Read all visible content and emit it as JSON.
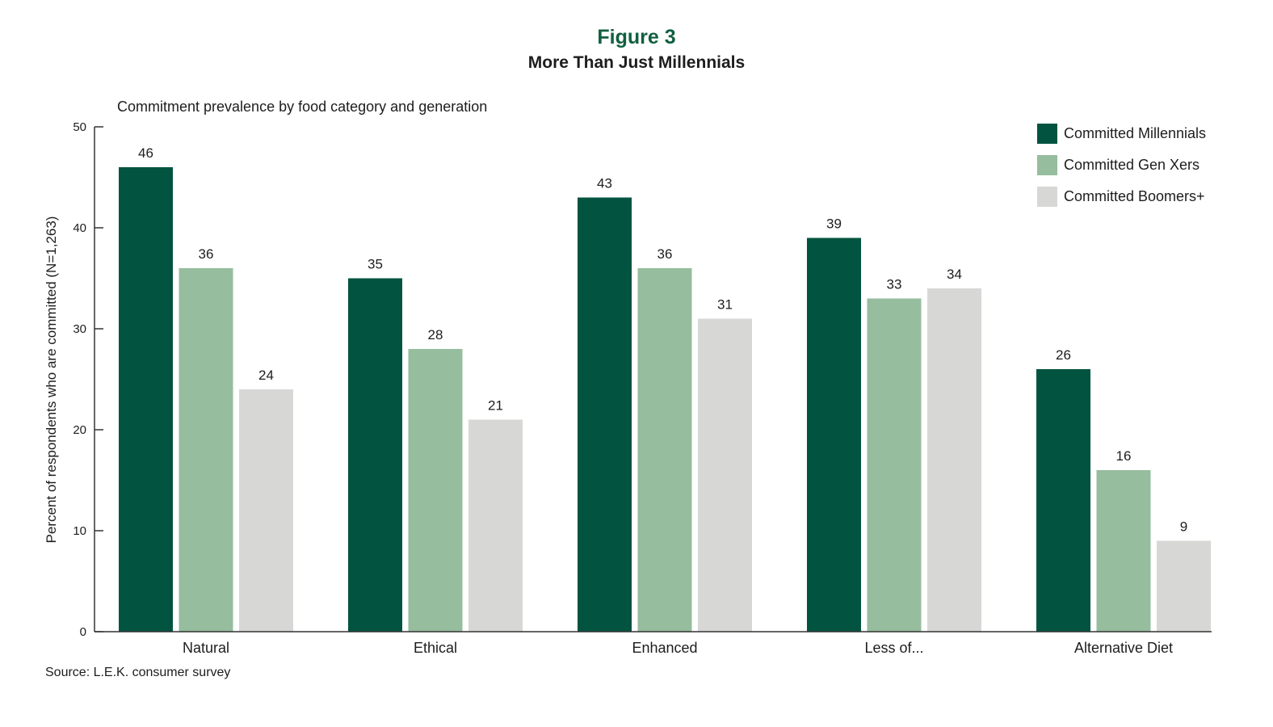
{
  "figure_label": "Figure 3",
  "source_note": "Source: L.E.K. consumer survey",
  "chart_data": {
    "type": "bar",
    "title": "More Than Just Millennials",
    "subtitle": "Commitment prevalence by food category and generation",
    "xlabel": "",
    "ylabel": "Percent of respondents who are committed (N=1,263)",
    "ylim": [
      0,
      50
    ],
    "yticks": [
      0,
      10,
      20,
      30,
      40,
      50
    ],
    "grid": false,
    "legend_position": "top-right",
    "categories": [
      "Natural",
      "Ethical",
      "Enhanced",
      "Less of...",
      "Alternative Diet"
    ],
    "series": [
      {
        "name": "Committed Millennials",
        "color": "#025440",
        "values": [
          46,
          35,
          43,
          39,
          26
        ]
      },
      {
        "name": "Committed Gen Xers",
        "color": "#96bd9e",
        "values": [
          36,
          28,
          36,
          33,
          16
        ]
      },
      {
        "name": "Committed Boomers+",
        "color": "#d7d8d6",
        "values": [
          24,
          21,
          31,
          34,
          9
        ]
      }
    ]
  }
}
